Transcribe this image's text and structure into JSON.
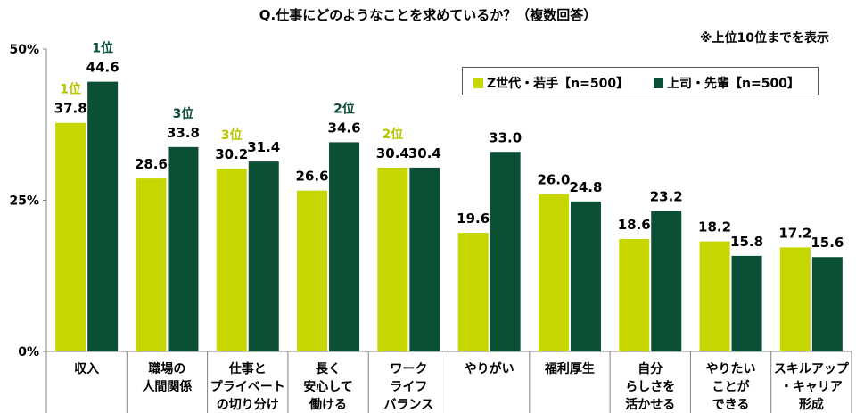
{
  "title": "Q.仕事にどのようなことを求めているか？（複数回答）",
  "note": "※上位10位までを表示",
  "colors": {
    "z": "#c5d600",
    "boss": "#0b4f35",
    "rank_z": "#b8c400",
    "rank_boss": "#0b4f35"
  },
  "chart_data": {
    "type": "bar",
    "title": "Q.仕事にどのようなことを求めているか？（複数回答）",
    "ylim": [
      0,
      50
    ],
    "yticks": [
      "0%",
      "25%",
      "50%"
    ],
    "ytick_values": [
      0,
      25,
      50
    ],
    "grid": false,
    "legend_position": "top-right",
    "categories": [
      [
        "収入"
      ],
      [
        "職場の",
        "人間関係"
      ],
      [
        "仕事と",
        "プライベート",
        "の切り分け"
      ],
      [
        "長く",
        "安心して",
        "働ける"
      ],
      [
        "ワーク",
        "ライフ",
        "バランス"
      ],
      [
        "やりがい"
      ],
      [
        "福利厚生"
      ],
      [
        "自分",
        "らしさを",
        "活かせる"
      ],
      [
        "やりたい",
        "ことが",
        "できる"
      ],
      [
        "スキルアップ",
        "・キャリア",
        "形成"
      ]
    ],
    "series": [
      {
        "name": "Z世代・若手【n=500】",
        "values": [
          37.8,
          28.6,
          30.2,
          26.6,
          30.4,
          19.6,
          26.0,
          18.6,
          18.2,
          17.2
        ],
        "labels": [
          "37.8",
          "28.6",
          "30.2",
          "26.6",
          "30.4",
          "19.6",
          "26.0",
          "18.6",
          "18.2",
          "17.2"
        ],
        "ranks": [
          "1位",
          "",
          "3位",
          "",
          "2位",
          "",
          "",
          "",
          "",
          ""
        ]
      },
      {
        "name": "上司・先輩【n=500】",
        "values": [
          44.6,
          33.8,
          31.4,
          34.6,
          30.4,
          33.0,
          24.8,
          23.2,
          15.8,
          15.6
        ],
        "labels": [
          "44.6",
          "33.8",
          "31.4",
          "34.6",
          "30.4",
          "33.0",
          "24.8",
          "23.2",
          "15.8",
          "15.6"
        ],
        "ranks": [
          "1位",
          "3位",
          "",
          "2位",
          "",
          "",
          "",
          "",
          "",
          ""
        ]
      }
    ]
  }
}
